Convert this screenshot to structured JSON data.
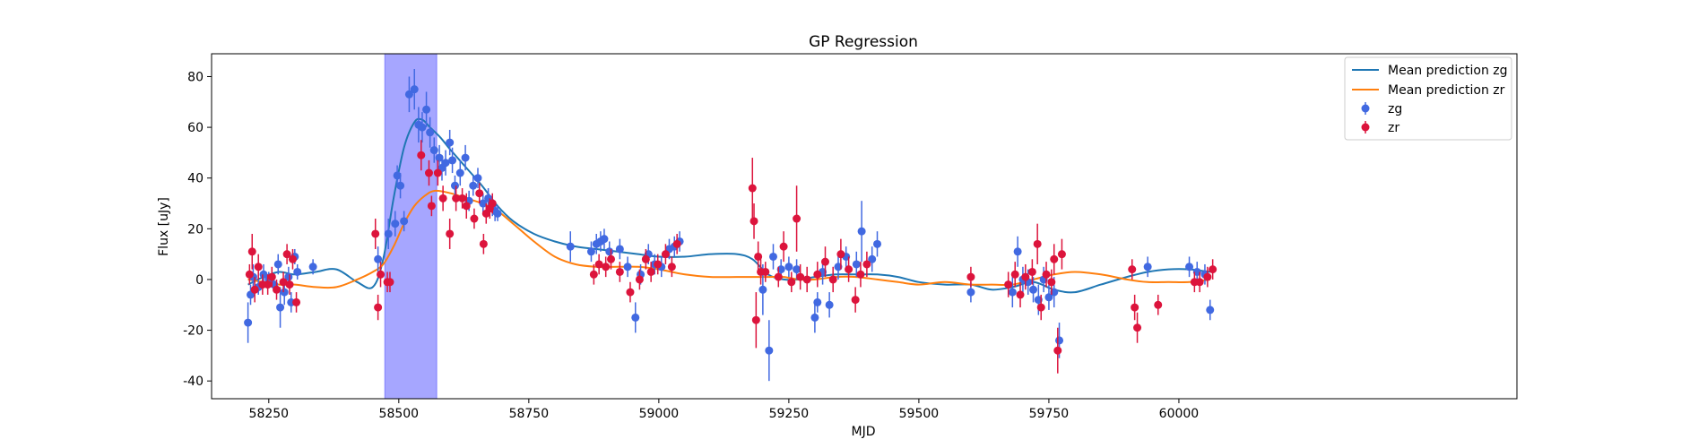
{
  "chart_data": {
    "type": "scatter",
    "title": "GP Regression",
    "xlabel": "MJD",
    "ylabel": "Flux [uJy]",
    "xlim": [
      58140,
      60650
    ],
    "ylim": [
      -47,
      89
    ],
    "xticks": [
      58250,
      58500,
      58750,
      59000,
      59250,
      59500,
      59750,
      60000
    ],
    "yticks": [
      -40,
      -20,
      0,
      20,
      40,
      60,
      80
    ],
    "grid": false,
    "legend_position": "top-right",
    "colors": {
      "zg_points": "#4169e1",
      "zr_points": "#dc143c",
      "zg_line": "#1f77b4",
      "zr_line": "#ff7f0e",
      "span": "#0000ff"
    },
    "highlight_span": {
      "x0": 58473,
      "x1": 58573
    },
    "legend": [
      {
        "label": "Mean prediction zg",
        "kind": "line",
        "color": "#1f77b4"
      },
      {
        "label": "Mean prediction zr",
        "kind": "line",
        "color": "#ff7f0e"
      },
      {
        "label": "zg",
        "kind": "errorbar",
        "color": "#4169e1"
      },
      {
        "label": "zr",
        "kind": "errorbar",
        "color": "#dc143c"
      }
    ],
    "lines": [
      {
        "name": "Mean prediction zg",
        "x": [
          58210,
          58240,
          58270,
          58300,
          58340,
          58380,
          58420,
          58450,
          58470,
          58490,
          58510,
          58530,
          58545,
          58560,
          58580,
          58600,
          58630,
          58660,
          58690,
          58720,
          58760,
          58800,
          58840,
          58880,
          58920,
          58960,
          59000,
          59050,
          59100,
          59150,
          59180,
          59210,
          59240,
          59270,
          59300,
          59340,
          59380,
          59420,
          59460,
          59500,
          59550,
          59600,
          59640,
          59680,
          59720,
          59760,
          59800,
          59850,
          59900,
          59940,
          59980,
          60020,
          60060
        ],
        "y": [
          -2,
          1,
          3,
          2,
          3,
          4,
          -1,
          -3,
          8,
          32,
          52,
          62,
          63,
          60,
          56,
          51,
          44,
          37,
          29,
          23,
          18,
          15,
          13,
          12,
          11,
          10,
          9,
          9,
          10,
          10,
          8,
          2,
          0,
          0,
          1,
          2,
          2,
          2,
          1,
          -1,
          -2,
          -2,
          -4,
          -3,
          -1,
          -4,
          -5,
          -2,
          1,
          3,
          4,
          4,
          3
        ]
      },
      {
        "name": "Mean prediction zr",
        "x": [
          58210,
          58240,
          58270,
          58300,
          58340,
          58380,
          58420,
          58450,
          58470,
          58490,
          58510,
          58530,
          58550,
          58570,
          58600,
          58630,
          58660,
          58690,
          58720,
          58760,
          58800,
          58840,
          58880,
          58920,
          58960,
          59000,
          59050,
          59100,
          59150,
          59180,
          59210,
          59240,
          59270,
          59300,
          59340,
          59380,
          59420,
          59460,
          59500,
          59550,
          59600,
          59640,
          59680,
          59720,
          59760,
          59800,
          59850,
          59900,
          59940,
          59980,
          60020,
          60060
        ],
        "y": [
          0,
          -1,
          -2,
          -2,
          -3,
          -3,
          0,
          3,
          6,
          13,
          22,
          29,
          33,
          35,
          34,
          32,
          30,
          27,
          22,
          15,
          9,
          6,
          5,
          5,
          5,
          4,
          2,
          1,
          1,
          1,
          1,
          1,
          0,
          0,
          1,
          1,
          0,
          -1,
          -2,
          -1,
          -2,
          -2,
          -2,
          0,
          2,
          3,
          2,
          0,
          -1,
          -1,
          -1,
          0
        ]
      }
    ],
    "series": [
      {
        "name": "zg",
        "x": [
          58210,
          58215,
          58220,
          58230,
          58240,
          58250,
          58260,
          58268,
          58272,
          58280,
          58288,
          58293,
          58300,
          58305,
          58335,
          58460,
          58480,
          58493,
          58497,
          58503,
          58510,
          58520,
          58530,
          58538,
          58545,
          58553,
          58560,
          58568,
          58578,
          58583,
          58590,
          58598,
          58603,
          58608,
          58618,
          58628,
          58635,
          58643,
          58652,
          58662,
          58672,
          58680,
          58685,
          58690,
          58830,
          58870,
          58880,
          58888,
          58895,
          58905,
          58925,
          58940,
          58955,
          58965,
          58980,
          58992,
          59005,
          59020,
          59030,
          59040,
          59200,
          59212,
          59220,
          59235,
          59250,
          59265,
          59300,
          59305,
          59315,
          59328,
          59345,
          59360,
          59380,
          59390,
          59410,
          59420,
          59600,
          59680,
          59690,
          59700,
          59710,
          59720,
          59730,
          59740,
          59750,
          59760,
          59770,
          59940,
          60020,
          60035,
          60050,
          60060
        ],
        "y": [
          -17,
          -6,
          1,
          -3,
          2,
          0,
          -2,
          6,
          -11,
          -5,
          1,
          -9,
          9,
          3,
          5,
          8,
          18,
          22,
          41,
          37,
          23,
          73,
          75,
          61,
          60,
          67,
          58,
          51,
          48,
          44,
          46,
          54,
          47,
          37,
          42,
          48,
          31,
          37,
          40,
          30,
          32,
          29,
          27,
          26,
          13,
          11,
          14,
          15,
          16,
          11,
          12,
          5,
          -15,
          2,
          10,
          6,
          5,
          12,
          13,
          15,
          -4,
          -28,
          9,
          4,
          5,
          4,
          -15,
          -9,
          3,
          -10,
          5,
          9,
          6,
          19,
          8,
          14,
          -5,
          -5,
          11,
          0,
          -1,
          -4,
          -8,
          0,
          -7,
          -5,
          -24,
          5,
          5,
          3,
          2,
          -12
        ],
        "err": [
          8,
          4,
          5,
          3,
          4,
          3,
          3,
          4,
          8,
          5,
          4,
          4,
          3,
          3,
          3,
          5,
          6,
          5,
          4,
          5,
          4,
          7,
          8,
          7,
          6,
          7,
          6,
          5,
          5,
          5,
          5,
          5,
          5,
          4,
          5,
          5,
          4,
          4,
          4,
          4,
          4,
          4,
          4,
          3,
          6,
          4,
          4,
          4,
          4,
          4,
          4,
          4,
          6,
          4,
          4,
          4,
          4,
          4,
          4,
          4,
          10,
          12,
          5,
          4,
          4,
          4,
          6,
          4,
          5,
          5,
          5,
          4,
          5,
          12,
          5,
          5,
          4,
          6,
          6,
          5,
          5,
          5,
          6,
          5,
          5,
          6,
          7,
          4,
          4,
          4,
          4,
          4
        ]
      },
      {
        "name": "zr",
        "x": [
          58213,
          58218,
          58223,
          58230,
          58238,
          58248,
          58256,
          58265,
          58278,
          58285,
          58290,
          58296,
          58303,
          58455,
          58460,
          58465,
          58478,
          58483,
          58543,
          58558,
          58563,
          58575,
          58585,
          58598,
          58610,
          58622,
          58630,
          58645,
          58655,
          58663,
          58668,
          58675,
          58680,
          58875,
          58885,
          58898,
          58908,
          58925,
          58945,
          58963,
          58975,
          58985,
          58998,
          59013,
          59025,
          59035,
          59180,
          59183,
          59187,
          59191,
          59196,
          59205,
          59230,
          59240,
          59255,
          59265,
          59272,
          59285,
          59305,
          59320,
          59335,
          59350,
          59365,
          59378,
          59388,
          59400,
          59600,
          59672,
          59685,
          59695,
          59705,
          59718,
          59728,
          59735,
          59745,
          59755,
          59760,
          59767,
          59775,
          59910,
          59915,
          59920,
          59960,
          60030,
          60040,
          60055,
          60065
        ],
        "y": [
          2,
          11,
          -4,
          5,
          -2,
          -2,
          1,
          -4,
          -1,
          10,
          -2,
          8,
          -9,
          18,
          -11,
          2,
          -1,
          -1,
          49,
          42,
          29,
          42,
          32,
          18,
          32,
          32,
          29,
          24,
          34,
          14,
          26,
          28,
          30,
          2,
          6,
          5,
          8,
          3,
          -5,
          0,
          8,
          3,
          6,
          10,
          5,
          14,
          36,
          23,
          -16,
          9,
          3,
          3,
          1,
          13,
          -1,
          24,
          1,
          0,
          2,
          7,
          0,
          10,
          4,
          -8,
          2,
          6,
          1,
          -2,
          2,
          -6,
          1,
          3,
          14,
          -11,
          2,
          -1,
          8,
          -28,
          10,
          4,
          -11,
          -19,
          -10,
          -1,
          -1,
          1,
          4
        ],
        "err": [
          4,
          7,
          5,
          5,
          4,
          4,
          4,
          4,
          4,
          4,
          4,
          4,
          4,
          6,
          5,
          5,
          4,
          4,
          6,
          5,
          4,
          5,
          5,
          6,
          5,
          4,
          5,
          4,
          4,
          4,
          4,
          4,
          4,
          4,
          4,
          4,
          4,
          4,
          4,
          4,
          4,
          4,
          4,
          4,
          4,
          4,
          12,
          7,
          11,
          6,
          5,
          4,
          4,
          6,
          4,
          13,
          5,
          5,
          5,
          6,
          5,
          6,
          5,
          5,
          5,
          5,
          4,
          5,
          5,
          5,
          5,
          5,
          8,
          5,
          5,
          5,
          6,
          9,
          6,
          4,
          5,
          6,
          4,
          4,
          4,
          4,
          4
        ]
      }
    ]
  }
}
